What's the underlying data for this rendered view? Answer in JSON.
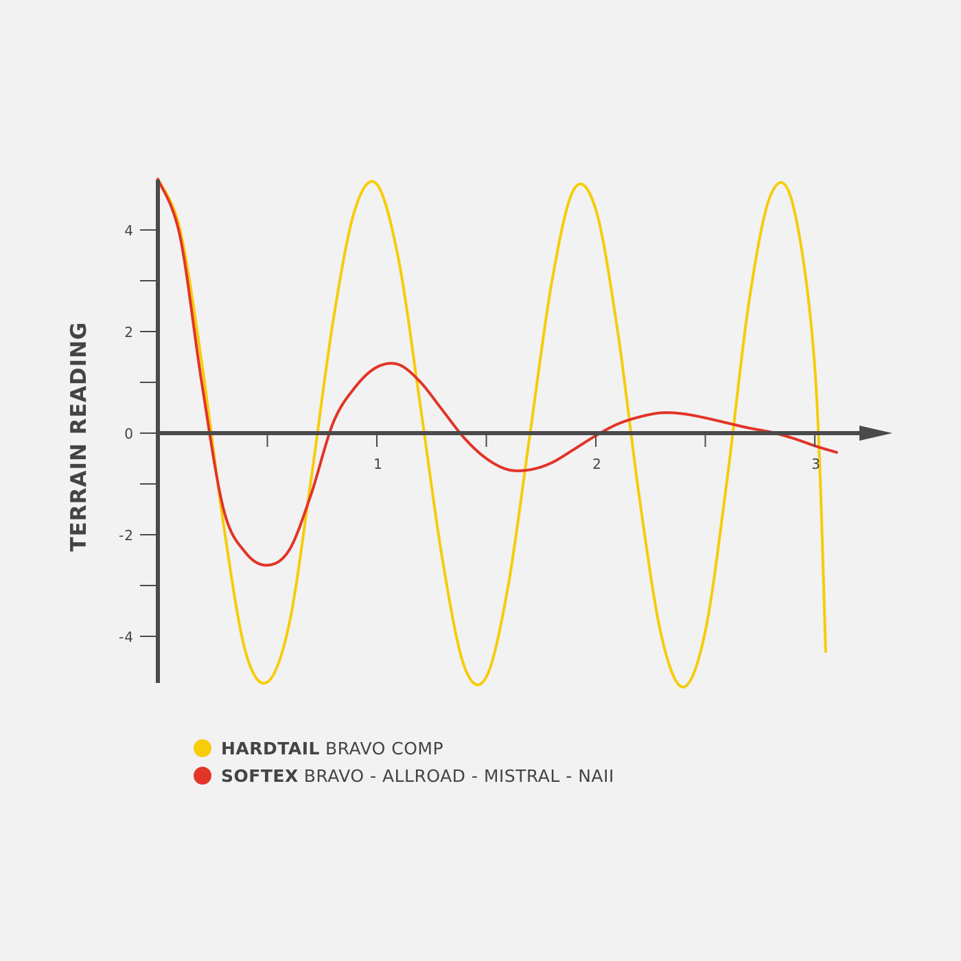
{
  "chart_data": {
    "type": "line",
    "title": "",
    "xlabel": "",
    "ylabel": "TERRAIN READING",
    "xlim": [
      0,
      3.1
    ],
    "ylim": [
      -4.9,
      5
    ],
    "x_ticks": [
      1,
      2,
      3
    ],
    "x_minor_ticks": [
      0.5,
      1.5,
      2.5
    ],
    "y_ticks": [
      4,
      2,
      0,
      -2,
      -4
    ],
    "y_minor_ticks": [
      3,
      1,
      -1,
      -3
    ],
    "grid": false,
    "legend_position": "bottom-left",
    "series": [
      {
        "name": "HARDTAIL BRAVO COMP",
        "name_bold": "HARDTAIL",
        "name_rest": "BRAVO COMP",
        "color": "#f7cc0a",
        "x": [
          0,
          0.1,
          0.2,
          0.3,
          0.4,
          0.5,
          0.6,
          0.7,
          0.8,
          0.9,
          1.0,
          1.1,
          1.2,
          1.3,
          1.4,
          1.5,
          1.6,
          1.7,
          1.8,
          1.9,
          2.0,
          2.1,
          2.2,
          2.3,
          2.4,
          2.5,
          2.6,
          2.7,
          2.8,
          2.9,
          3.0,
          3.05
        ],
        "y": [
          5.0,
          4.03,
          1.4,
          -1.8,
          -4.3,
          -4.9,
          -3.75,
          -0.9,
          2.2,
          4.4,
          4.9,
          3.4,
          0.5,
          -2.5,
          -4.6,
          -4.8,
          -3.0,
          0.0,
          3.0,
          4.8,
          4.4,
          2.0,
          -1.3,
          -4.0,
          -5.0,
          -3.9,
          -0.9,
          2.6,
          4.7,
          4.5,
          1.3,
          -4.3
        ]
      },
      {
        "name": "SOFTEX BRAVO - ALLROAD - MISTRAL - NAII",
        "name_bold": "SOFTEX",
        "name_rest": "BRAVO - ALLROAD - MISTRAL - NAII",
        "color": "#e23427",
        "x": [
          0,
          0.1,
          0.2,
          0.3,
          0.4,
          0.5,
          0.6,
          0.7,
          0.8,
          0.9,
          1.0,
          1.1,
          1.2,
          1.3,
          1.4,
          1.5,
          1.6,
          1.7,
          1.8,
          1.9,
          2.0,
          2.1,
          2.2,
          2.3,
          2.4,
          2.5,
          2.6,
          2.7,
          2.8,
          2.9,
          3.0,
          3.1
        ],
        "y": [
          5.0,
          3.9,
          1.0,
          -1.5,
          -2.35,
          -2.6,
          -2.3,
          -1.2,
          0.2,
          0.9,
          1.3,
          1.35,
          1.0,
          0.45,
          -0.1,
          -0.5,
          -0.72,
          -0.72,
          -0.58,
          -0.32,
          -0.05,
          0.18,
          0.32,
          0.4,
          0.38,
          0.3,
          0.2,
          0.1,
          0.02,
          -0.1,
          -0.25,
          -0.38
        ]
      }
    ]
  }
}
